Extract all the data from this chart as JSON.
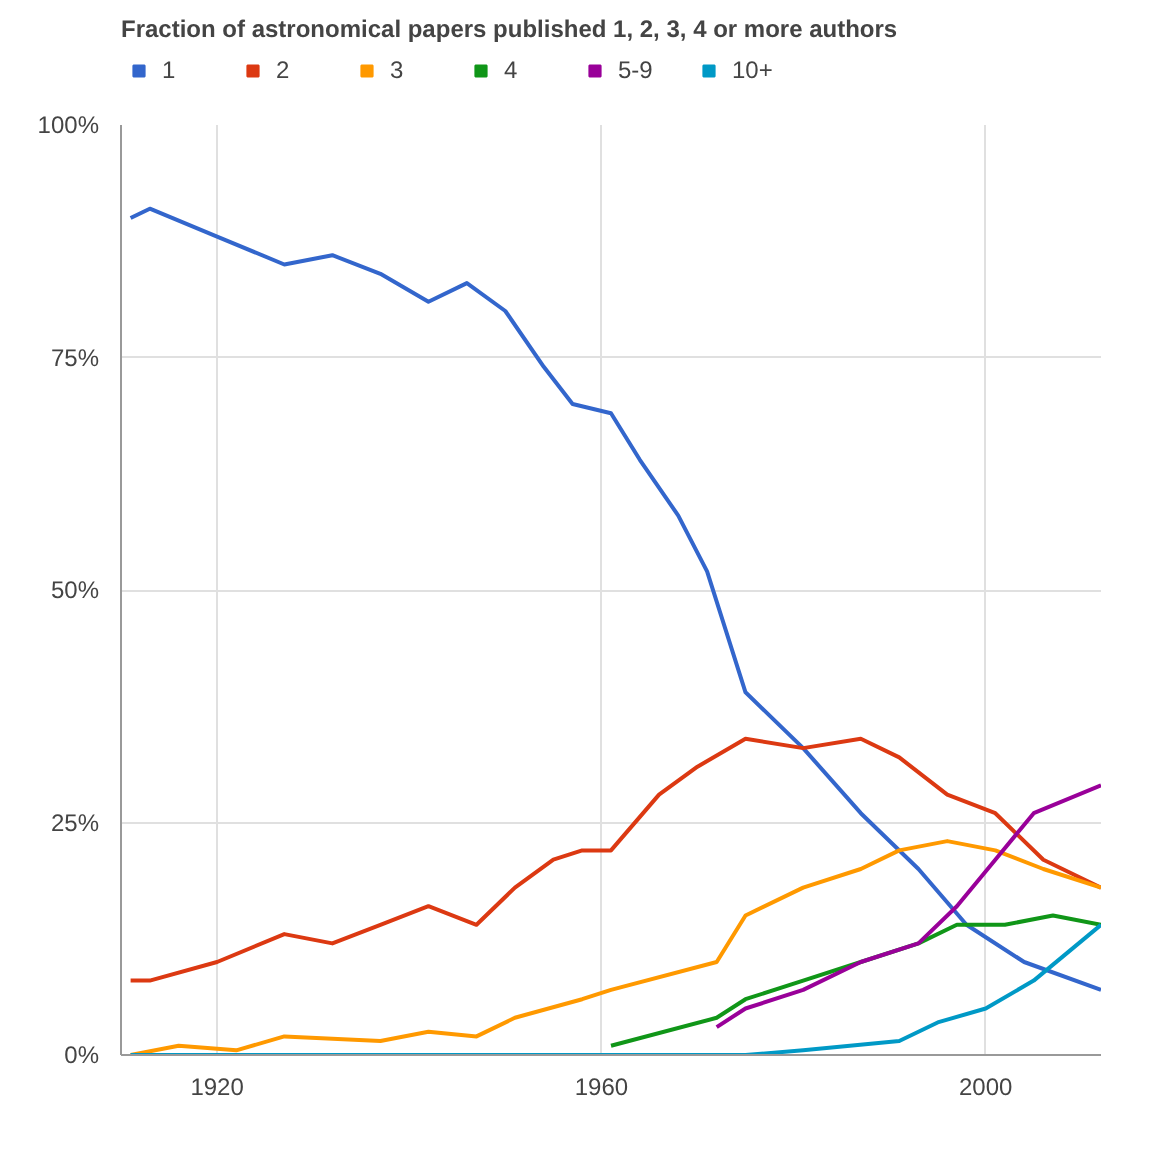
{
  "chart_data": {
    "type": "line",
    "title": "Fraction of astronomical papers published 1, 2, 3, 4 or more authors",
    "xlim": [
      1910,
      2012
    ],
    "xticks": [
      1920,
      1960,
      2000
    ],
    "ylim": [
      0,
      100
    ],
    "yticks": [
      {
        "value": 0,
        "label": "0%"
      },
      {
        "value": 25,
        "label": "25%"
      },
      {
        "value": 50,
        "label": "50%"
      },
      {
        "value": 75,
        "label": "75%"
      },
      {
        "value": 100,
        "label": "100%"
      }
    ],
    "grid": true,
    "legend": "top",
    "marker": "none",
    "line_style": "solid",
    "series": [
      {
        "name": "1",
        "color": "#3366cc",
        "x": [
          1911,
          1913,
          1920,
          1927,
          1932,
          1937,
          1942,
          1946,
          1950,
          1954,
          1957,
          1961,
          1964,
          1968,
          1971,
          1975,
          1981,
          1987,
          1993,
          1998,
          2004,
          2012
        ],
        "values": [
          90,
          91,
          88,
          85,
          86,
          84,
          81,
          83,
          80,
          74,
          70,
          69,
          64,
          58,
          52,
          39,
          33,
          26,
          20,
          14,
          10,
          7
        ]
      },
      {
        "name": "2",
        "color": "#dc3912",
        "x": [
          1911,
          1913,
          1920,
          1927,
          1932,
          1937,
          1942,
          1947,
          1951,
          1955,
          1958,
          1961,
          1966,
          1970,
          1975,
          1981,
          1987,
          1991,
          1996,
          2001,
          2006,
          2012
        ],
        "values": [
          8,
          8,
          10,
          13,
          12,
          14,
          16,
          14,
          18,
          21,
          22,
          22,
          28,
          31,
          34,
          33,
          34,
          32,
          28,
          26,
          21,
          18
        ]
      },
      {
        "name": "3",
        "color": "#ff9900",
        "x": [
          1911,
          1916,
          1922,
          1927,
          1937,
          1942,
          1947,
          1951,
          1958,
          1961,
          1972,
          1975,
          1981,
          1987,
          1991,
          1996,
          2001,
          2006,
          2012
        ],
        "values": [
          0,
          1,
          0.5,
          2,
          1.5,
          2.5,
          2,
          4,
          6,
          7,
          10,
          15,
          18,
          20,
          22,
          23,
          22,
          20,
          18
        ]
      },
      {
        "name": "4",
        "color": "#109618",
        "x": [
          1961,
          1972,
          1975,
          1981,
          1987,
          1993,
          1997,
          2002,
          2007,
          2012
        ],
        "values": [
          1,
          4,
          6,
          8,
          10,
          12,
          14,
          14,
          15,
          14
        ]
      },
      {
        "name": "5-9",
        "color": "#990099",
        "x": [
          1972,
          1975,
          1981,
          1987,
          1993,
          1997,
          2001,
          2005,
          2012
        ],
        "values": [
          3,
          5,
          7,
          10,
          12,
          16,
          21,
          26,
          29
        ]
      },
      {
        "name": "10+",
        "color": "#0099c6",
        "x": [
          1911,
          1975,
          1981,
          1991,
          1995,
          2000,
          2005,
          2012
        ],
        "values": [
          0,
          0,
          0.5,
          1.5,
          3.5,
          5,
          8,
          14
        ]
      }
    ]
  }
}
